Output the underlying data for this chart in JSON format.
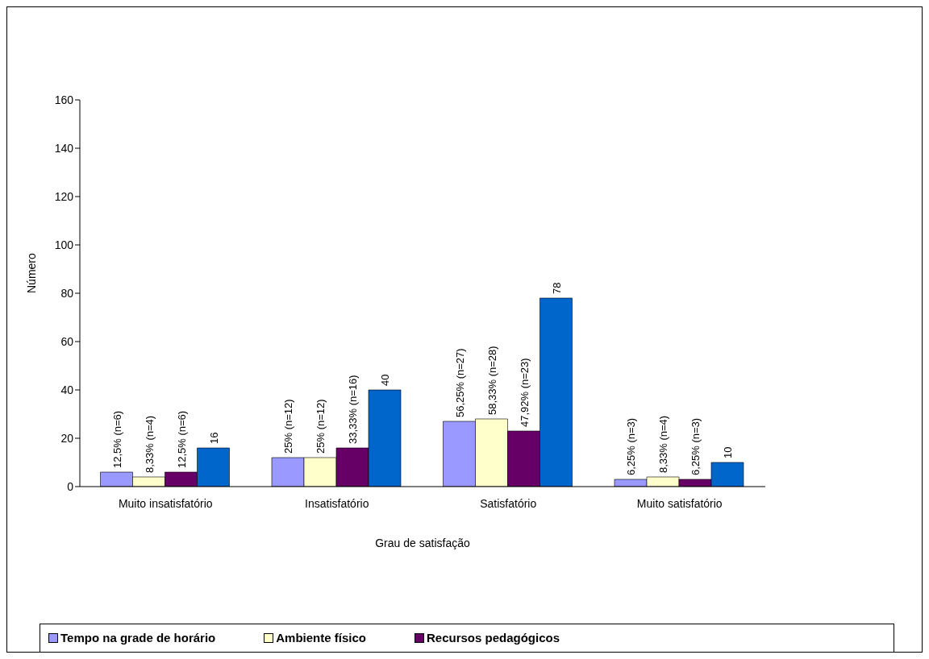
{
  "chart_data": {
    "type": "bar",
    "xlabel": "Grau de satisfação",
    "ylabel": "Número",
    "categories": [
      "Muito insatisfatório",
      "Insatisfatório",
      "Satisfatório",
      "Muito satisfatório"
    ],
    "series": [
      {
        "name": "Tempo na grade de horário",
        "color": "#9999ff",
        "values": [
          6,
          12,
          27,
          3
        ],
        "value_labels": [
          "12,5% (n=6)",
          "25% (n=12)",
          "56,25% (n=27)",
          "6,25% (n=3)"
        ]
      },
      {
        "name": "Ambiente físico",
        "color": "#ffffcc",
        "values": [
          4,
          12,
          28,
          4
        ],
        "value_labels": [
          "8,33% (n=4)",
          "25% (n=12)",
          "58,33% (n=28)",
          "8,33% (n=4)"
        ]
      },
      {
        "name": "Recursos pedagógicos",
        "color": "#660066",
        "values": [
          6,
          16,
          23,
          3
        ],
        "value_labels": [
          "12,5% (n=6)",
          "33,33% (n=16)",
          "47,92% (n=23)",
          "6,25% (n=3)"
        ]
      },
      {
        "color": "#0066cc",
        "values": [
          16,
          40,
          78,
          10
        ],
        "value_labels": [
          "16",
          "40",
          "78",
          "10"
        ]
      }
    ],
    "ylim": [
      0,
      160
    ],
    "yticks": [
      0,
      20,
      40,
      60,
      80,
      100,
      120,
      140,
      160
    ],
    "legend": "bottom"
  }
}
